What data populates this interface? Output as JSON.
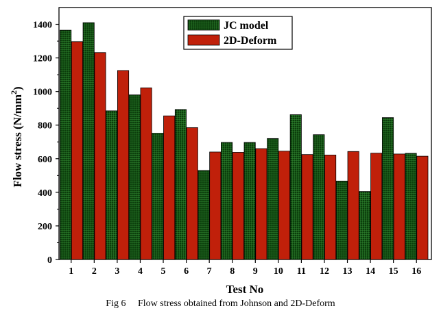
{
  "chart_data": {
    "type": "bar",
    "xlabel": "Test No",
    "ylabel_main": "Flow stress (N/mm",
    "ylabel_sup": "2",
    "ylabel_close": ")",
    "ylim": [
      0,
      1500
    ],
    "yticks": [
      0,
      200,
      400,
      600,
      800,
      1000,
      1200,
      1400
    ],
    "categories": [
      "1",
      "2",
      "3",
      "4",
      "5",
      "6",
      "7",
      "8",
      "9",
      "10",
      "11",
      "12",
      "13",
      "14",
      "15",
      "16"
    ],
    "series": [
      {
        "name": "JC model",
        "color": "#0e4a0e",
        "pattern": "grid",
        "values": [
          1365,
          1410,
          885,
          980,
          752,
          893,
          530,
          697,
          697,
          720,
          862,
          743,
          467,
          405,
          845,
          632
        ]
      },
      {
        "name": "2D-Deform",
        "color": "#c0200a",
        "pattern": "solid",
        "values": [
          1297,
          1232,
          1125,
          1022,
          855,
          785,
          640,
          638,
          660,
          645,
          625,
          622,
          643,
          633,
          628,
          615
        ]
      }
    ],
    "legend_position": "top-center",
    "grid": false
  },
  "caption": "Fig 6     Flow stress obtained from Johnson and 2D-Deform"
}
